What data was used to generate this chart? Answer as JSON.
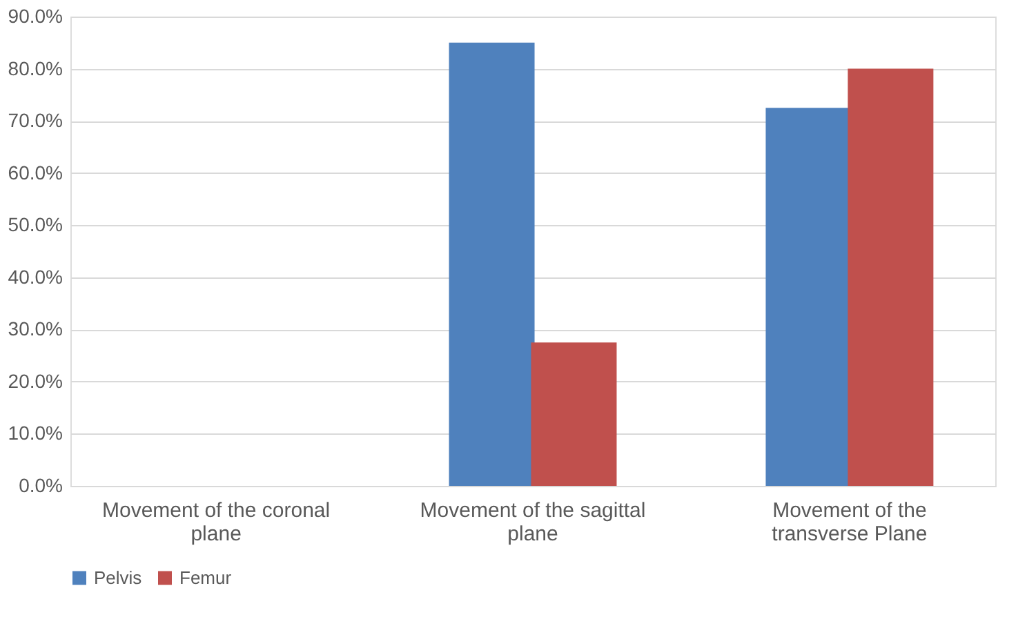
{
  "chart_data": {
    "type": "bar",
    "categories": [
      "Movement of the coronal plane",
      "Movement of the sagittal plane",
      "Movement of the transverse Plane"
    ],
    "series": [
      {
        "name": "Pelvis",
        "color": "#4f81bd",
        "values": [
          0,
          85,
          72.5
        ]
      },
      {
        "name": "Femur",
        "color": "#c0504d",
        "values": [
          0,
          27.5,
          80
        ]
      }
    ],
    "ylim": [
      0,
      90
    ],
    "yticks": [
      {
        "value": 0,
        "label": "0.0%"
      },
      {
        "value": 10,
        "label": "10.0%"
      },
      {
        "value": 20,
        "label": "20.0%"
      },
      {
        "value": 30,
        "label": "30.0%"
      },
      {
        "value": 40,
        "label": "40.0%"
      },
      {
        "value": 50,
        "label": "50.0%"
      },
      {
        "value": 60,
        "label": "60.0%"
      },
      {
        "value": 70,
        "label": "70.0%"
      },
      {
        "value": 80,
        "label": "80.0%"
      },
      {
        "value": 90,
        "label": "90.0%"
      }
    ],
    "grid": "y",
    "legend": "bottom"
  }
}
